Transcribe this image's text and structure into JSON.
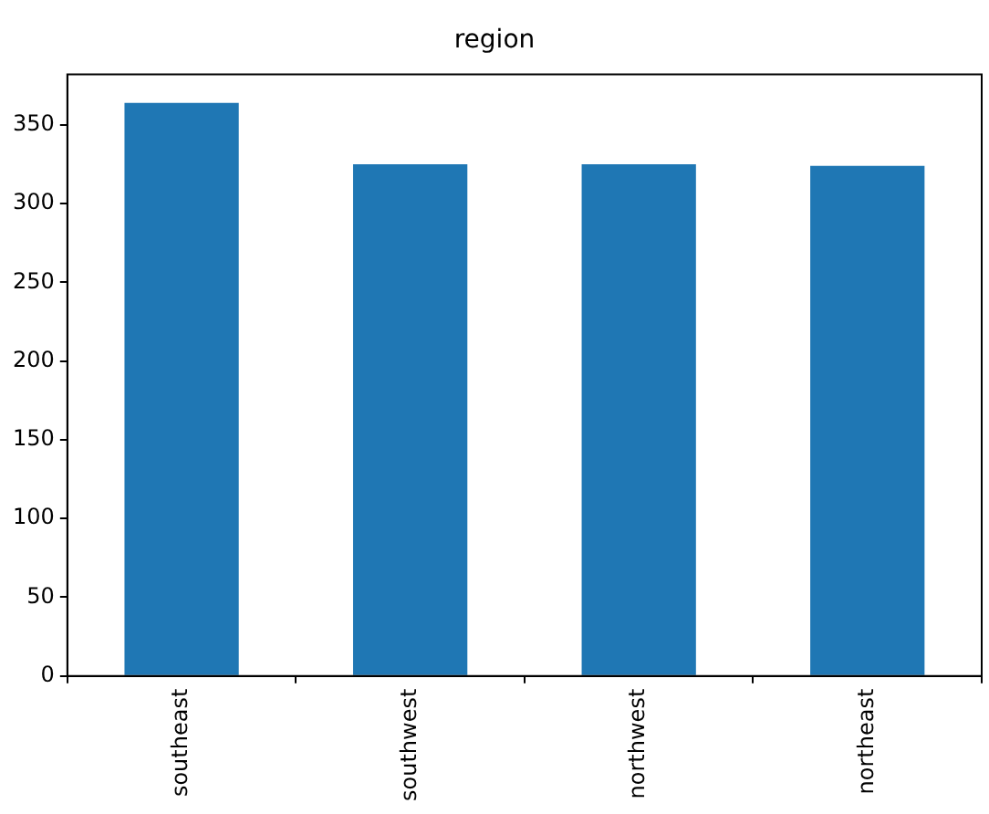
{
  "chart_data": {
    "type": "bar",
    "title": "region",
    "categories": [
      "southeast",
      "southwest",
      "northwest",
      "northeast"
    ],
    "values": [
      364,
      325,
      325,
      324
    ],
    "color": "#1f77b4",
    "ylim": [
      0,
      382
    ],
    "yticks": [
      0,
      50,
      100,
      150,
      200,
      250,
      300,
      350
    ],
    "grid": false,
    "legend": false
  }
}
